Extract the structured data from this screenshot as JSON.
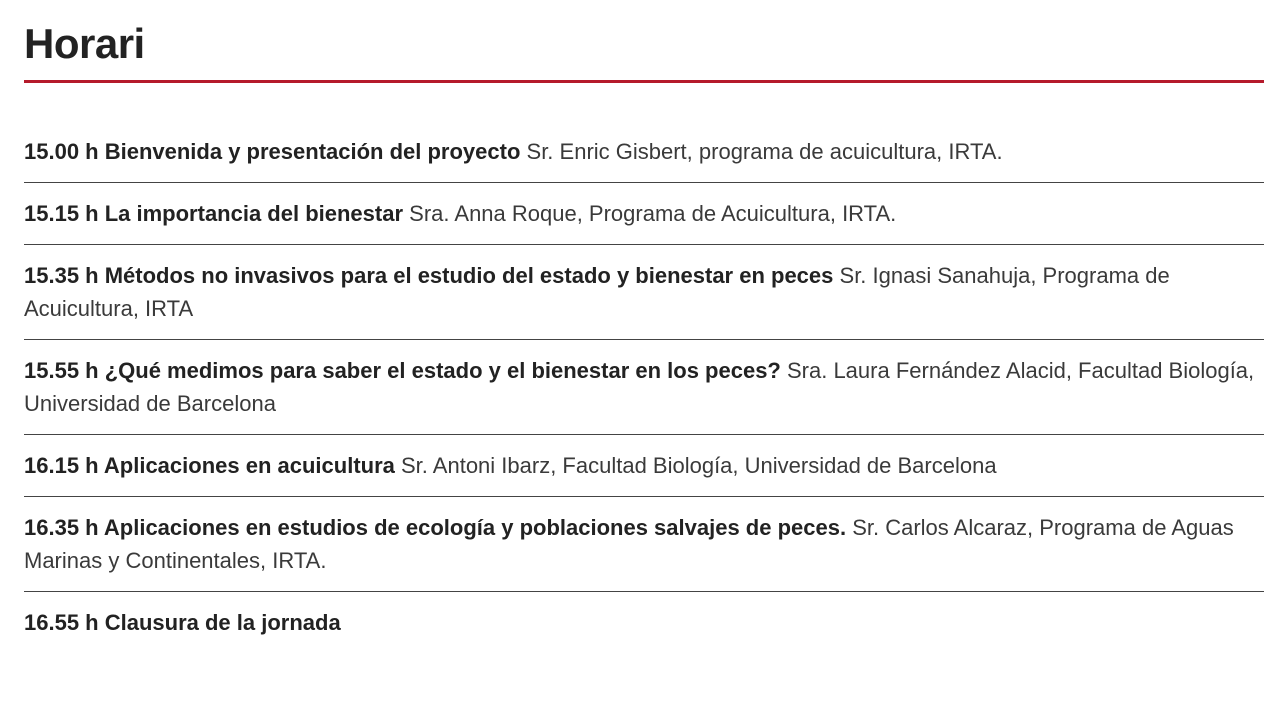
{
  "section": {
    "title": "Horari",
    "underline_color": "#b51a2b",
    "items": [
      {
        "bold": "15.00 h Bienvenida y presentación del proyecto",
        "rest": " Sr. Enric Gisbert, programa de acuicultura, IRTA."
      },
      {
        "bold": "15.15 h La importancia del bienestar",
        "rest": " Sra. Anna Roque, Programa de Acuicultura, IRTA."
      },
      {
        "bold": "15.35 h Métodos no invasivos para el estudio del estado y bienestar en peces",
        "rest": " Sr. Ignasi Sanahuja, Programa de Acuicultura, IRTA"
      },
      {
        "bold": "15.55 h ¿Qué medimos para saber el estado y el bienestar en los peces?",
        "rest": " Sra. Laura Fernández Alacid, Facultad Biología, Universidad de Barcelona"
      },
      {
        "bold": "16.15 h Aplicaciones en acuicultura",
        "rest": " Sr. Antoni Ibarz, Facultad Biología, Universidad de Barcelona"
      },
      {
        "bold": "16.35 h Aplicaciones en estudios de ecología y poblaciones salvajes de peces.",
        "rest": " Sr. Carlos Alcaraz, Programa de Aguas Marinas y Continentales, IRTA."
      },
      {
        "bold": "16.55 h Clausura de la jornada",
        "rest": ""
      }
    ]
  }
}
